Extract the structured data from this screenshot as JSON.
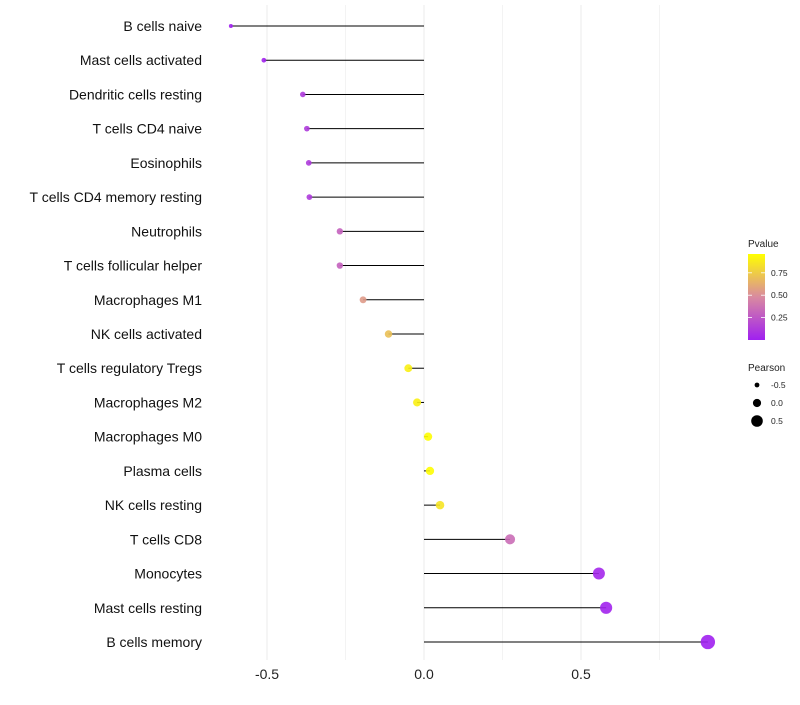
{
  "chart_data": {
    "type": "lollipop",
    "title": "",
    "xlabel": "",
    "ylabel": "",
    "xlim": [
      -0.68,
      0.94
    ],
    "x_ticks": [
      -0.5,
      0.0,
      0.5
    ],
    "x_tick_labels": [
      "-0.5",
      "0.0",
      "0.5"
    ],
    "grid": true,
    "categories": [
      "B cells naive",
      "Mast cells activated",
      "Dendritic cells resting",
      "T cells CD4 naive",
      "Eosinophils",
      "T cells CD4 memory resting",
      "Neutrophils",
      "T cells follicular helper",
      "Macrophages M1",
      "NK cells activated",
      "T cells regulatory  Tregs",
      "Macrophages M2",
      "Macrophages M0",
      "Plasma cells",
      "NK cells resting",
      "T cells CD8",
      "Monocytes",
      "Mast cells resting",
      "B cells memory"
    ],
    "pearson": [
      -0.615,
      -0.51,
      -0.386,
      -0.373,
      -0.367,
      -0.365,
      -0.268,
      -0.268,
      -0.194,
      -0.113,
      -0.05,
      -0.022,
      0.013,
      0.019,
      0.051,
      0.274,
      0.557,
      0.58,
      0.904
    ],
    "pvalue": [
      0.005,
      0.02,
      0.12,
      0.12,
      0.12,
      0.12,
      0.3,
      0.3,
      0.55,
      0.7,
      0.9,
      0.9,
      0.95,
      0.95,
      0.85,
      0.35,
      0.03,
      0.02,
      0.0002
    ],
    "color_legend": {
      "title": "Pvalue",
      "ticks": [
        0.25,
        0.5,
        0.75
      ],
      "tick_labels": [
        "0.25",
        "0.50",
        "0.75"
      ],
      "range": [
        0,
        0.96
      ],
      "low_color": "#a020f0",
      "mid_color": "#d98aa0",
      "high_color": "#ffff00"
    },
    "size_legend": {
      "title": "Pearson",
      "values": [
        -0.5,
        0.0,
        0.5
      ],
      "labels": [
        "-0.5",
        "0.0",
        "0.5"
      ]
    },
    "legend_placement": "right"
  }
}
